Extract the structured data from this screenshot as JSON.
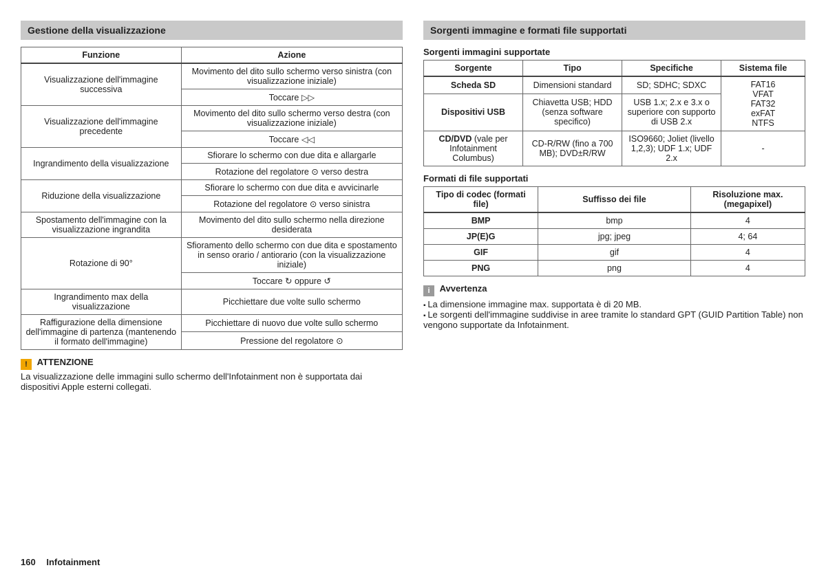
{
  "left": {
    "header": "Gestione della visualizzazione",
    "columns": [
      "Funzione",
      "Azione"
    ],
    "rows": [
      {
        "func": "Visualizzazione dell'immagine successiva",
        "actions": [
          "Movimento del dito sullo schermo verso sinistra (con visualizzazione iniziale)",
          "Toccare ▷▷"
        ]
      },
      {
        "func": "Visualizzazione dell'immagine precedente",
        "actions": [
          "Movimento del dito sullo schermo verso destra (con visualizzazione iniziale)",
          "Toccare ◁◁"
        ]
      },
      {
        "func": "Ingrandimento della visualizzazione",
        "actions": [
          "Sfiorare lo schermo con due dita e allargarle",
          "Rotazione del regolatore ⊙ verso destra"
        ]
      },
      {
        "func": "Riduzione della visualizzazione",
        "actions": [
          "Sfiorare lo schermo con due dita e avvicinarle",
          "Rotazione del regolatore ⊙ verso sinistra"
        ]
      },
      {
        "func": "Spostamento dell'immagine con la visualizzazione ingrandita",
        "actions": [
          "Movimento del dito sullo schermo nella direzione desiderata"
        ]
      },
      {
        "func": "Rotazione di 90°",
        "actions": [
          "Sfioramento dello schermo con due dita e spostamento in senso orario / antiorario (con la visualizzazione iniziale)",
          "Toccare ↻ oppure ↺"
        ]
      },
      {
        "func": "Ingrandimento max della visualizzazione",
        "actions": [
          "Picchiettare due volte sullo schermo"
        ]
      },
      {
        "func": "Raffigurazione della dimensione dell'immagine di partenza (mantenendo il formato dell'immagine)",
        "actions": [
          "Picchiettare di nuovo due volte sullo schermo",
          "Pressione del regolatore ⊙"
        ]
      }
    ],
    "warn_title": "ATTENZIONE",
    "warn_body": "La visualizzazione delle immagini sullo schermo dell'Infotainment non è supportata dai dispositivi Apple esterni collegati."
  },
  "right": {
    "header": "Sorgenti immagine e formati file supportati",
    "sources_title": "Sorgenti immagini supportate",
    "sources_columns": [
      "Sorgente",
      "Tipo",
      "Specifiche",
      "Sistema file"
    ],
    "sources": {
      "rows": [
        {
          "sorgente": "Scheda SD",
          "tipo": "Dimensioni standard",
          "spec": "SD; SDHC; SDXC"
        },
        {
          "sorgente": "Dispositivi USB",
          "tipo": "Chiavetta USB; HDD (senza software specifico)",
          "spec": "USB 1.x; 2.x e 3.x o superiore con supporto di USB 2.x"
        },
        {
          "sorgente_html": "<b>CD/DVD</b> (vale per Infotainment Columbus)",
          "tipo": "CD-R/RW (fino a 700 MB); DVD±R/RW",
          "spec": "ISO9660; Joliet (livello 1,2,3); UDF 1.x; UDF 2.x"
        }
      ],
      "fs_group1": "FAT16\nVFAT\nFAT32\nexFAT\nNTFS",
      "fs_group2": "-"
    },
    "formats_title": "Formati di file supportati",
    "formats_columns": [
      "Tipo di codec (formati file)",
      "Suffisso dei file",
      "Risoluzione max. (megapixel)"
    ],
    "formats_rows": [
      {
        "codec": "BMP",
        "suffix": "bmp",
        "res": "4"
      },
      {
        "codec": "JP(E)G",
        "suffix": "jpg; jpeg",
        "res": "4; 64"
      },
      {
        "codec": "GIF",
        "suffix": "gif",
        "res": "4"
      },
      {
        "codec": "PNG",
        "suffix": "png",
        "res": "4"
      }
    ],
    "info_title": "Avvertenza",
    "info_bullets": [
      "La dimensione immagine max. supportata è di 20 MB.",
      "Le sorgenti dell'immagine suddivise in aree tramite lo standard GPT (GUID Partition Table) non vengono supportate da Infotainment."
    ]
  },
  "footer": {
    "page": "160",
    "title": "Infotainment"
  },
  "style": {
    "header_bg": "#c9c9c9",
    "border_color": "#666666",
    "warn_bg": "#f0a500",
    "info_bg": "#9a9a9a",
    "font_size_body": 13,
    "font_size_table": 12.5
  }
}
